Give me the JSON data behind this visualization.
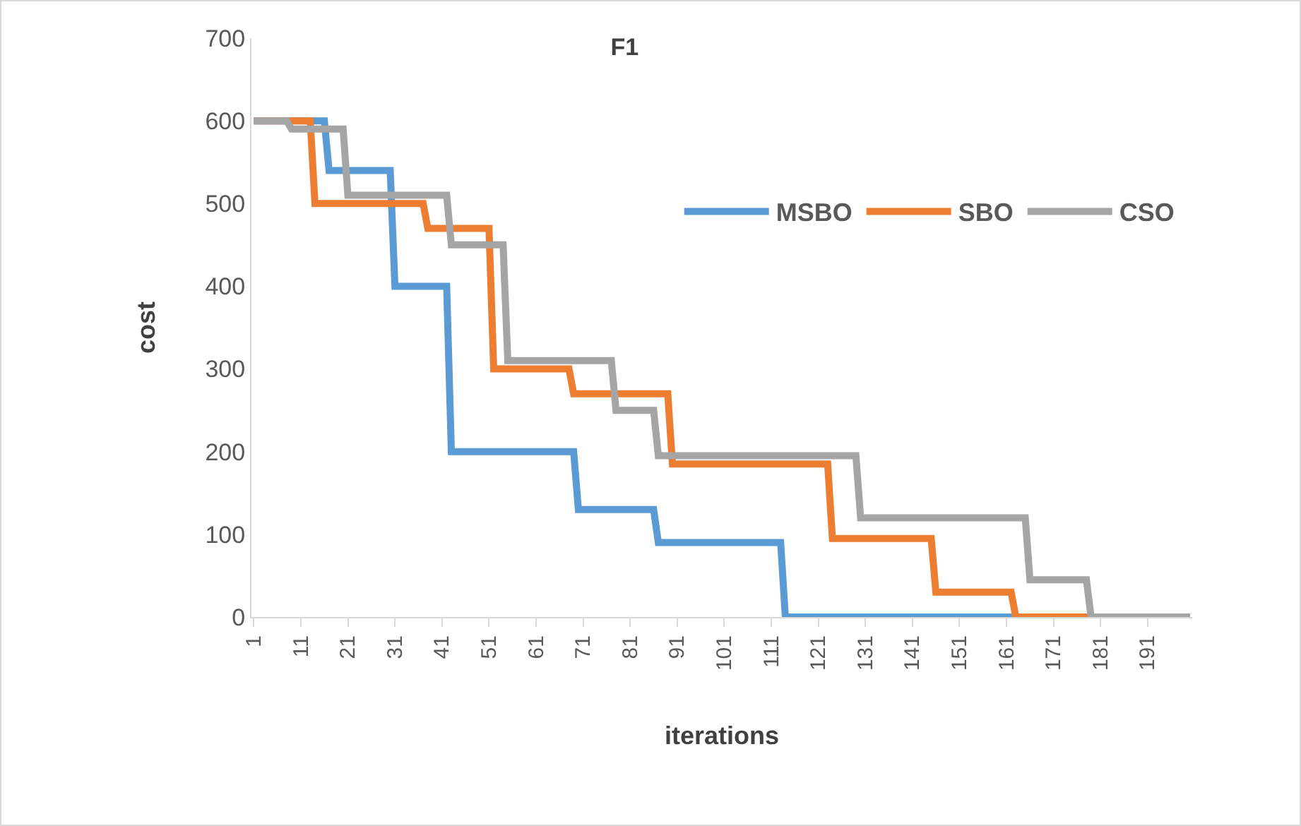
{
  "chart_data": {
    "type": "line",
    "title": "F1",
    "xlabel": "iterations",
    "ylabel": "cost",
    "xlim": [
      0.5,
      200.5
    ],
    "xticks": [
      1,
      11,
      21,
      31,
      41,
      51,
      61,
      71,
      81,
      91,
      101,
      111,
      121,
      131,
      141,
      151,
      161,
      171,
      181,
      191
    ],
    "ylim": [
      0,
      700
    ],
    "yticks": [
      0,
      100,
      200,
      300,
      400,
      500,
      600,
      700
    ],
    "grid": false,
    "legend": "top right",
    "marker": "none",
    "line_style": "solid",
    "series": [
      {
        "name": "MSBO",
        "color": "#5b9bd5",
        "x": [
          1,
          16,
          17,
          30,
          31,
          42,
          43,
          69,
          70,
          86,
          87,
          113,
          114,
          200
        ],
        "values": [
          600,
          600,
          540,
          540,
          400,
          400,
          200,
          200,
          130,
          130,
          90,
          90,
          0,
          0
        ]
      },
      {
        "name": "SBO",
        "color": "#ed7d31",
        "x": [
          1,
          13,
          14,
          37,
          38,
          51,
          52,
          68,
          69,
          89,
          90,
          123,
          124,
          145,
          146,
          162,
          163,
          200
        ],
        "values": [
          600,
          600,
          500,
          500,
          470,
          470,
          300,
          300,
          270,
          270,
          185,
          185,
          95,
          95,
          30,
          30,
          0,
          0
        ]
      },
      {
        "name": "CSO",
        "color": "#a5a5a5",
        "x": [
          1,
          8,
          9,
          20,
          21,
          42,
          43,
          54,
          55,
          77,
          78,
          86,
          87,
          129,
          130,
          165,
          166,
          178,
          179,
          200
        ],
        "values": [
          600,
          600,
          590,
          590,
          510,
          510,
          450,
          450,
          310,
          310,
          250,
          250,
          195,
          195,
          120,
          120,
          45,
          45,
          0,
          0
        ]
      }
    ]
  }
}
